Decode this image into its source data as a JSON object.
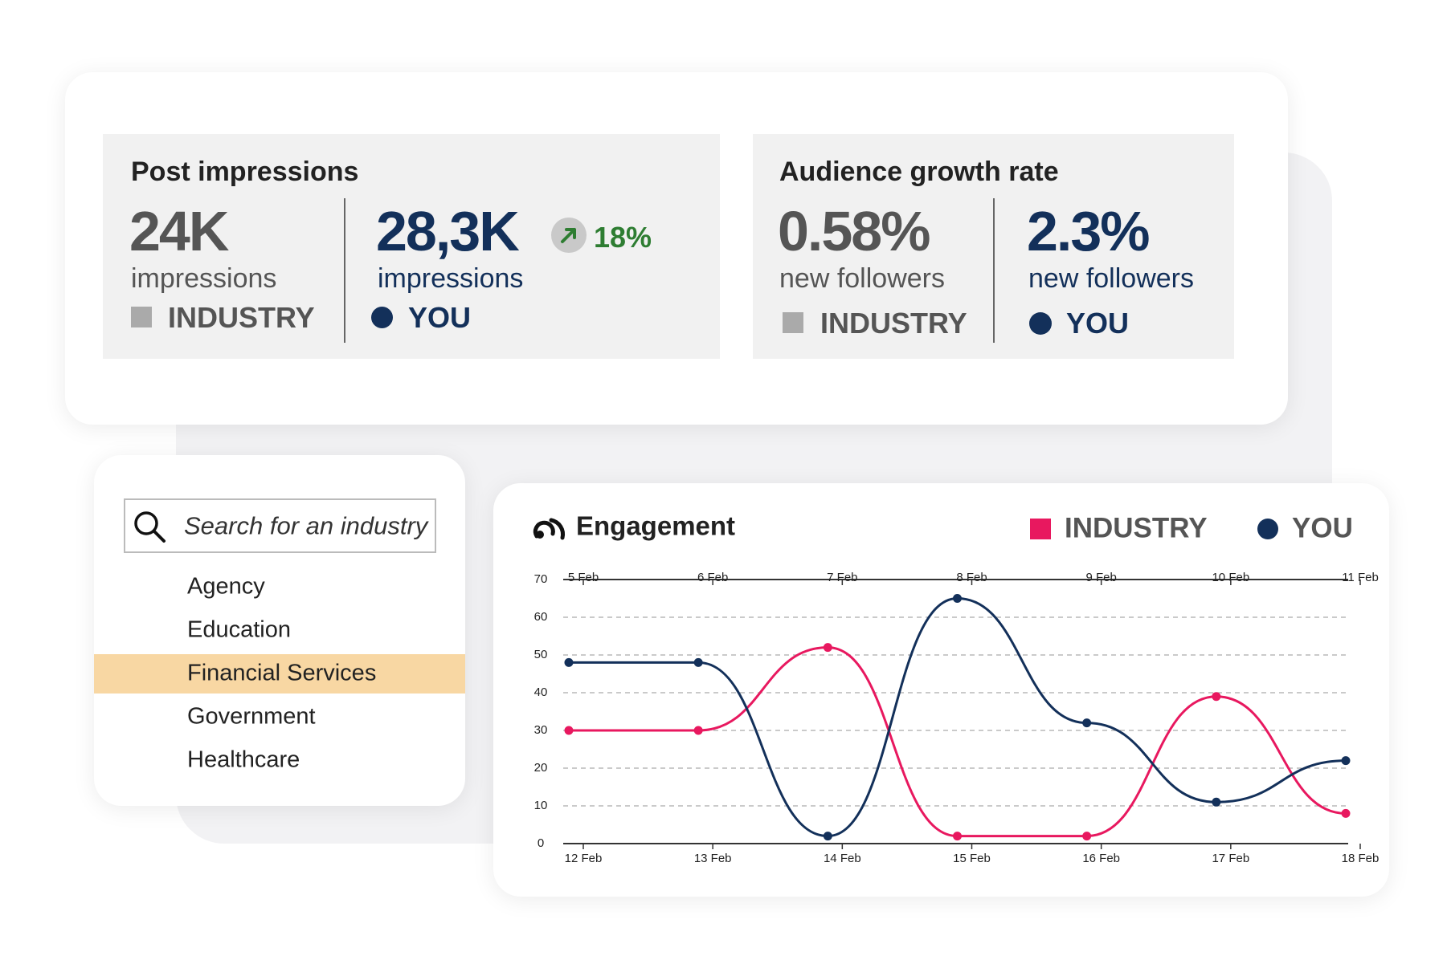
{
  "metrics": [
    {
      "title": "Post impressions",
      "industry": {
        "value": "24K",
        "unit": "impressions",
        "label": "INDUSTRY"
      },
      "you": {
        "value": "28,3K",
        "unit": "impressions",
        "label": "YOU",
        "change": "18%"
      }
    },
    {
      "title": "Audience growth rate",
      "industry": {
        "value": "0.58%",
        "unit": "new followers",
        "label": "INDUSTRY"
      },
      "you": {
        "value": "2.3%",
        "unit": "new followers",
        "label": "YOU"
      }
    }
  ],
  "search": {
    "placeholder": "Search for an industry",
    "options": [
      "Agency",
      "Education",
      "Financial Services",
      "Government",
      "Healthcare"
    ],
    "selected": 2
  },
  "chart_data": {
    "type": "line",
    "title": "Engagement",
    "categories": [
      "12 Feb",
      "13 Feb",
      "14 Feb",
      "15 Feb",
      "16 Feb",
      "17 Feb",
      "18 Feb"
    ],
    "top_categories": [
      "5 Feb",
      "6 Feb",
      "7 Feb",
      "8 Feb",
      "9 Feb",
      "10 Feb",
      "11 Feb"
    ],
    "series": [
      {
        "name": "INDUSTRY",
        "color": "#e8185f",
        "values": [
          30,
          30,
          52,
          2,
          2,
          39,
          8
        ]
      },
      {
        "name": "YOU",
        "color": "#13305a",
        "values": [
          48,
          48,
          2,
          65,
          32,
          11,
          22
        ]
      }
    ],
    "ylim": [
      0,
      70
    ],
    "yticks": [
      0,
      10,
      20,
      30,
      40,
      50,
      60,
      70
    ],
    "grid": true,
    "legend": "top-right"
  }
}
